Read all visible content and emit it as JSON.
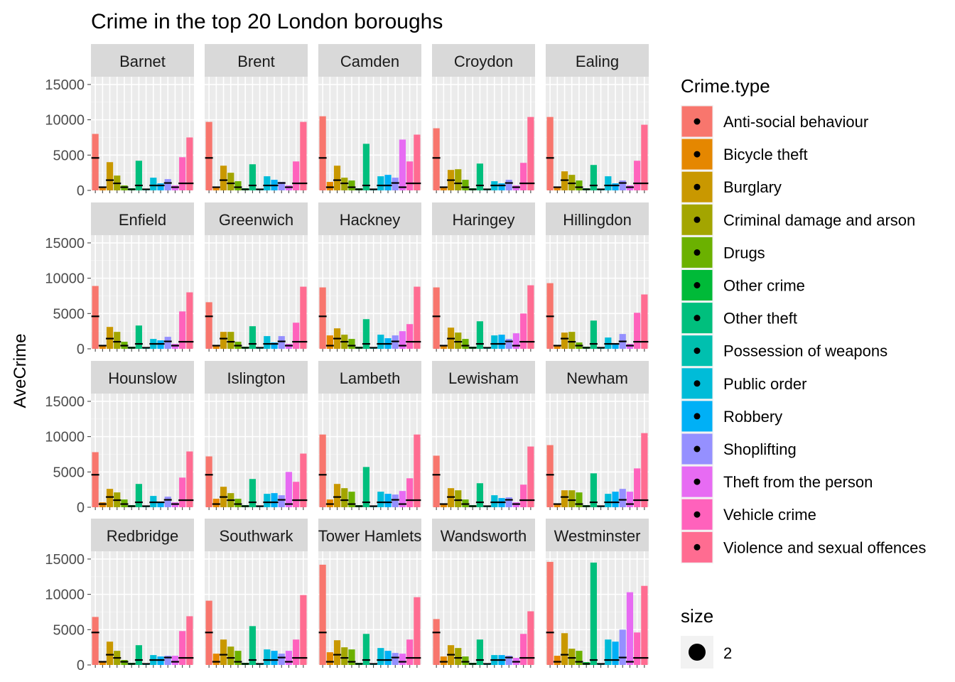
{
  "chart_data": {
    "type": "bar",
    "title": "Crime in the top 20 London boroughs",
    "xlabel": "",
    "ylabel": "AveCrime",
    "ylim": [
      0,
      15000
    ],
    "y_ticks": [
      0,
      5000,
      10000,
      15000
    ],
    "grid": true,
    "facet_layout": {
      "rows": 4,
      "cols": 5
    },
    "legend": {
      "title": "Crime.type",
      "placement": "right",
      "entries": [
        {
          "label": "Anti-social behaviour",
          "color": "#F8766D"
        },
        {
          "label": "Bicycle theft",
          "color": "#E58700"
        },
        {
          "label": "Burglary",
          "color": "#C99800"
        },
        {
          "label": "Criminal damage and arson",
          "color": "#A3A500"
        },
        {
          "label": "Drugs",
          "color": "#6BB100"
        },
        {
          "label": "Other crime",
          "color": "#00BA38"
        },
        {
          "label": "Other theft",
          "color": "#00BF7D"
        },
        {
          "label": "Possession of weapons",
          "color": "#00C0AF"
        },
        {
          "label": "Public order",
          "color": "#00BCD8"
        },
        {
          "label": "Robbery",
          "color": "#00B0F6"
        },
        {
          "label": "Shoplifting",
          "color": "#9590FF"
        },
        {
          "label": "Theft from the person",
          "color": "#E76BF3"
        },
        {
          "label": "Vehicle crime",
          "color": "#FF62BC"
        },
        {
          "label": "Violence and sexual offences",
          "color": "#FF6C91"
        }
      ],
      "size_title": "size",
      "size_entry": "2"
    },
    "mean_marks": [
      4600,
      450,
      1450,
      1000,
      450,
      150,
      700,
      150,
      700,
      700,
      1050,
      450,
      1000,
      1000
    ],
    "panels": [
      {
        "name": "Barnet",
        "values": [
          8000,
          400,
          4000,
          2100,
          700,
          300,
          4200,
          100,
          1800,
          1000,
          1600,
          700,
          4700,
          7500
        ]
      },
      {
        "name": "Brent",
        "values": [
          9700,
          400,
          3500,
          2500,
          1300,
          300,
          3700,
          200,
          2000,
          1500,
          1200,
          700,
          4100,
          9700
        ]
      },
      {
        "name": "Camden",
        "values": [
          10500,
          1200,
          3500,
          1800,
          1400,
          300,
          6600,
          200,
          2000,
          2200,
          1800,
          7200,
          4100,
          7900
        ]
      },
      {
        "name": "Croydon",
        "values": [
          8800,
          400,
          2900,
          3000,
          1500,
          300,
          3800,
          200,
          1300,
          1000,
          1500,
          700,
          3900,
          10400
        ]
      },
      {
        "name": "Ealing",
        "values": [
          10400,
          500,
          2700,
          2200,
          1400,
          300,
          3600,
          200,
          2000,
          1000,
          1400,
          700,
          4200,
          9300
        ]
      },
      {
        "name": "Enfield",
        "values": [
          8900,
          400,
          3100,
          2400,
          1000,
          300,
          3300,
          200,
          1400,
          1200,
          1700,
          700,
          5300,
          8000
        ]
      },
      {
        "name": "Greenwich",
        "values": [
          6600,
          400,
          2400,
          2400,
          1000,
          300,
          3200,
          200,
          1800,
          900,
          1800,
          700,
          3700,
          8800
        ]
      },
      {
        "name": "Hackney",
        "values": [
          8700,
          1900,
          2900,
          2000,
          1400,
          300,
          4200,
          200,
          2000,
          1500,
          1900,
          2500,
          3500,
          8800
        ]
      },
      {
        "name": "Haringey",
        "values": [
          8700,
          400,
          3000,
          2300,
          1400,
          300,
          3900,
          200,
          1900,
          2000,
          1400,
          2200,
          5000,
          9000
        ]
      },
      {
        "name": "Hillingdon",
        "values": [
          9300,
          400,
          2300,
          2400,
          900,
          300,
          4000,
          200,
          1600,
          800,
          2100,
          700,
          5100,
          7700
        ]
      },
      {
        "name": "Hounslow",
        "values": [
          7800,
          700,
          2600,
          2100,
          1100,
          300,
          3300,
          200,
          1600,
          800,
          1500,
          700,
          4200,
          7900
        ]
      },
      {
        "name": "Islington",
        "values": [
          7200,
          1200,
          2900,
          2000,
          1200,
          300,
          4000,
          200,
          1900,
          2000,
          1700,
          5000,
          3600,
          7600
        ]
      },
      {
        "name": "Lambeth",
        "values": [
          10300,
          1100,
          3300,
          2700,
          2200,
          300,
          5700,
          200,
          2200,
          1900,
          1800,
          2300,
          4100,
          10300
        ]
      },
      {
        "name": "Lewisham",
        "values": [
          7300,
          400,
          2700,
          2400,
          1100,
          300,
          3400,
          200,
          1700,
          1300,
          1400,
          700,
          3200,
          8600
        ]
      },
      {
        "name": "Newham",
        "values": [
          8800,
          400,
          2400,
          2400,
          2100,
          300,
          4800,
          200,
          1900,
          2200,
          2600,
          2200,
          5500,
          10500
        ]
      },
      {
        "name": "Redbridge",
        "values": [
          6800,
          400,
          3300,
          2000,
          700,
          300,
          2800,
          200,
          1400,
          1200,
          1300,
          1300,
          4800,
          6900
        ]
      },
      {
        "name": "Southwark",
        "values": [
          9100,
          1600,
          3600,
          2600,
          2000,
          300,
          5500,
          200,
          2200,
          2000,
          1600,
          2000,
          3600,
          9900
        ]
      },
      {
        "name": "Tower Hamlets",
        "values": [
          14200,
          1800,
          3500,
          2500,
          2200,
          300,
          4400,
          200,
          2400,
          2000,
          1700,
          1600,
          3600,
          9600
        ]
      },
      {
        "name": "Wandsworth",
        "values": [
          6500,
          1200,
          2800,
          2400,
          1200,
          300,
          3600,
          200,
          1400,
          1400,
          1300,
          1000,
          4400,
          7600
        ]
      },
      {
        "name": "Westminster",
        "values": [
          14600,
          1300,
          4500,
          2300,
          2000,
          400,
          14500,
          200,
          3600,
          3300,
          5000,
          10300,
          4600,
          11200
        ]
      }
    ]
  }
}
